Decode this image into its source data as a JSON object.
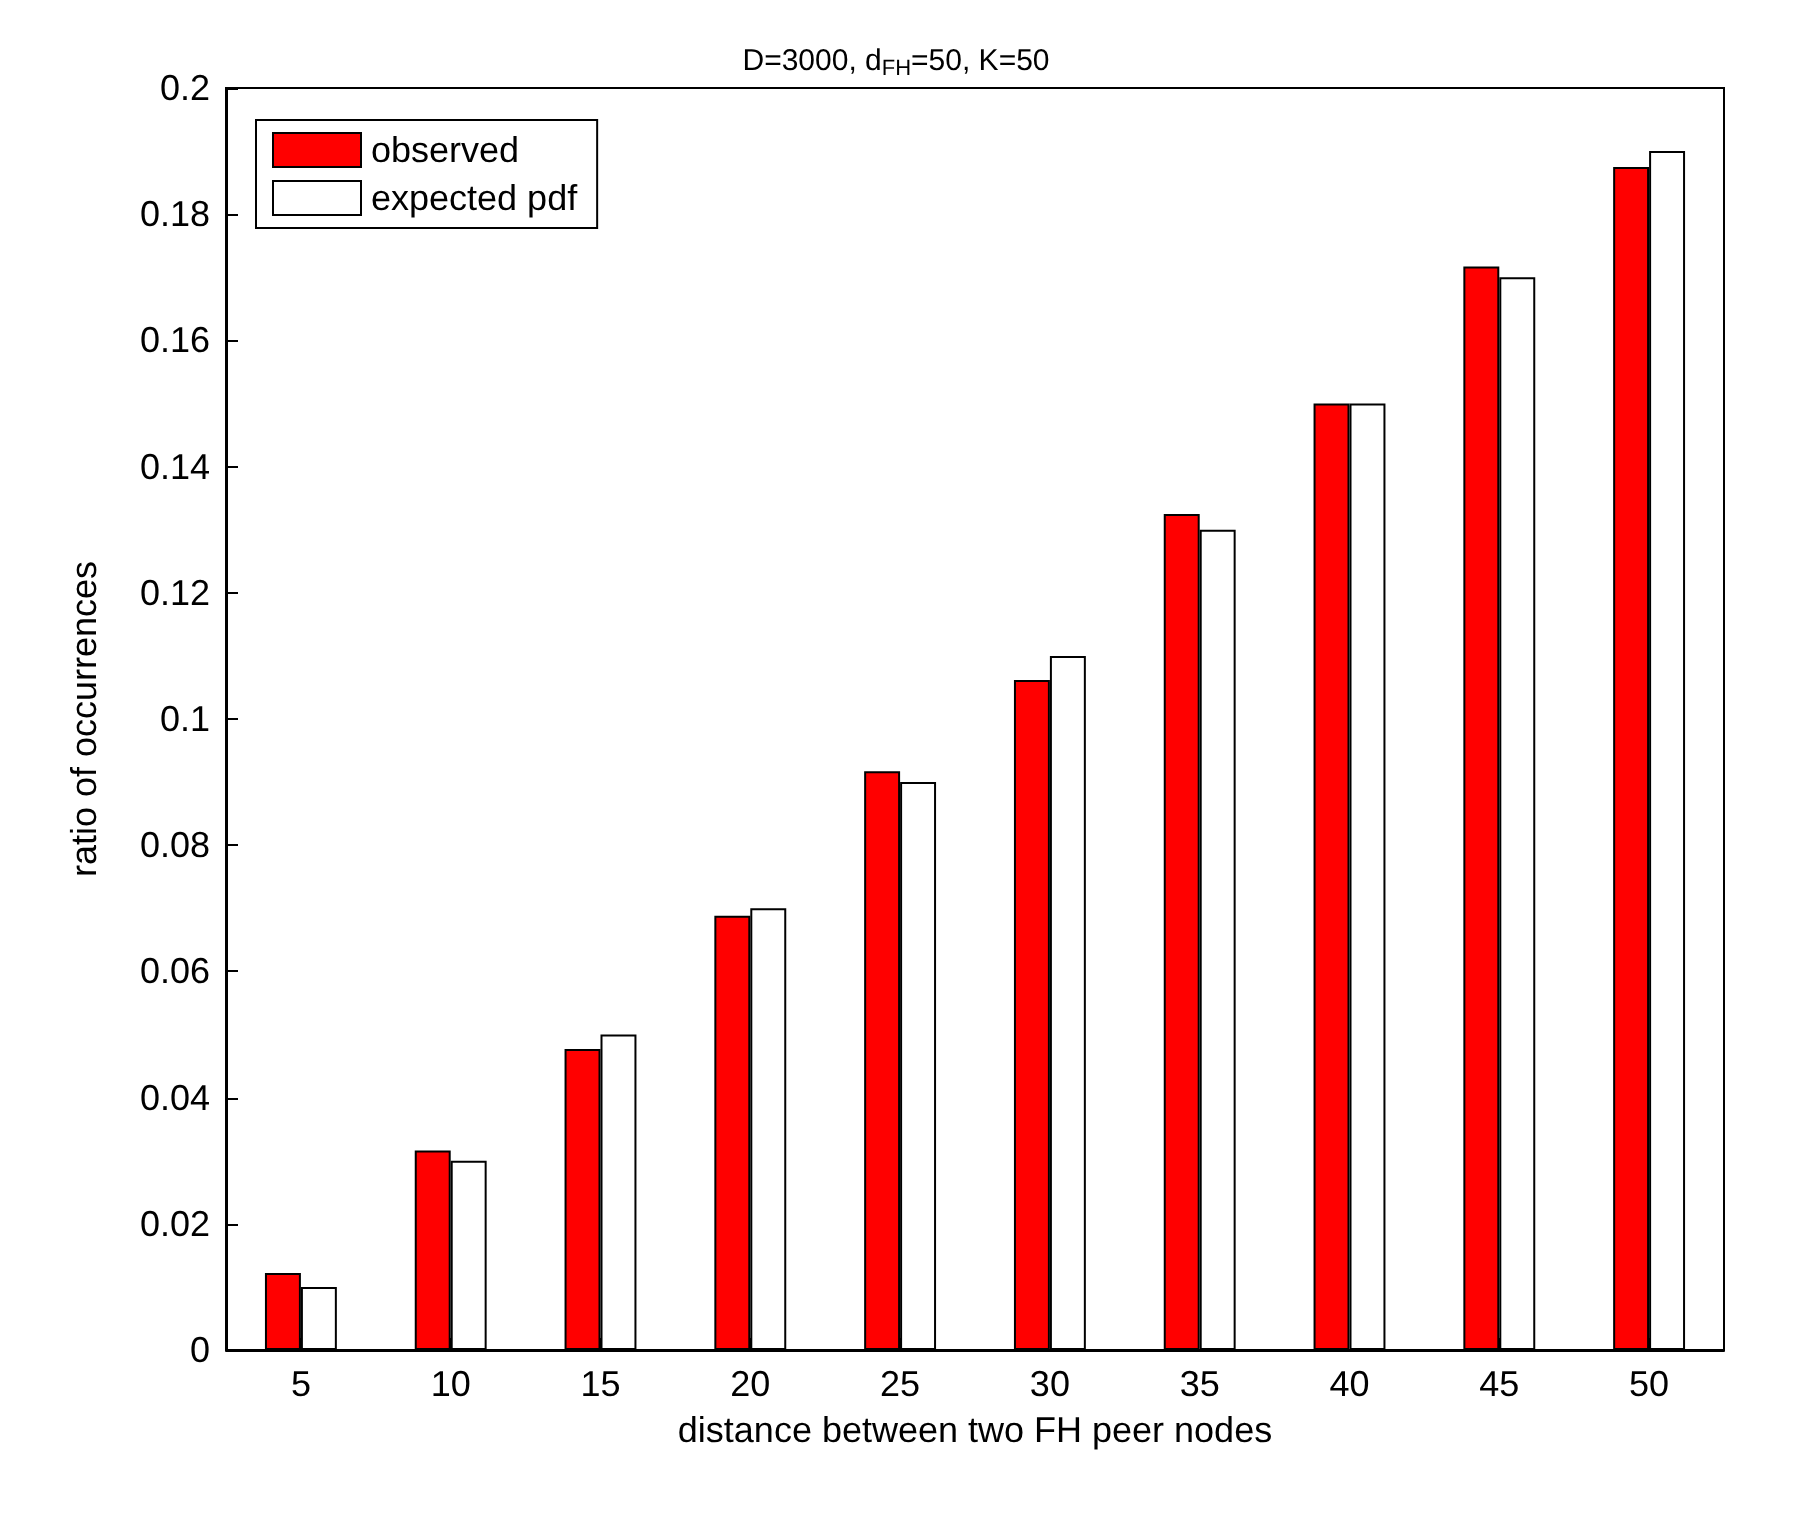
{
  "chart_data": {
    "type": "bar",
    "title": "D=3000, d$_{FH}$=50, K=50",
    "xlabel": "distance between two FH peer nodes",
    "ylabel": "ratio of occurrences",
    "categories": [
      "5",
      "10",
      "15",
      "20",
      "25",
      "30",
      "35",
      "40",
      "45",
      "50"
    ],
    "series": [
      {
        "name": "observed",
        "color": "#ff0000",
        "values": [
          0.0122,
          0.0316,
          0.0477,
          0.0688,
          0.0917,
          0.1062,
          0.1325,
          0.15,
          0.1717,
          0.1875
        ]
      },
      {
        "name": "expected pdf",
        "color": "#ffffff",
        "values": [
          0.01,
          0.03,
          0.05,
          0.07,
          0.09,
          0.11,
          0.13,
          0.15,
          0.17,
          0.19
        ]
      }
    ],
    "ylim": [
      0,
      0.2
    ],
    "yticks": [
      0,
      0.02,
      0.04,
      0.06,
      0.08,
      0.1,
      0.12,
      0.14,
      0.16,
      0.18,
      0.2
    ],
    "grid": false,
    "legend": "top left"
  }
}
